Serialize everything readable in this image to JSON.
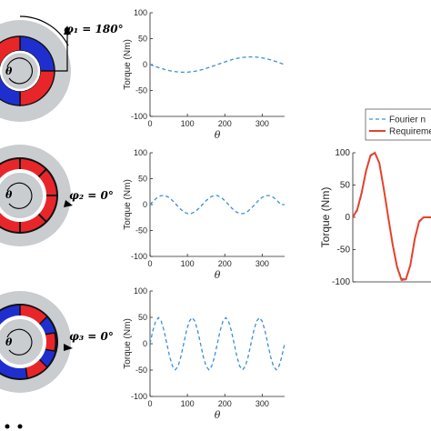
{
  "colors": {
    "blue_curve": "#3a8fd8",
    "red_curve": "#e8412c",
    "stator_gray": "#c9cdd0",
    "magnet_red": "#e8262a",
    "magnet_blue": "#1f2fcf",
    "rotor_dark": "#1a1a1a"
  },
  "rotors": [
    {
      "phi_label": "φ₁ = 180°"
    },
    {
      "phi_label": "φ₂ = 0°"
    },
    {
      "phi_label": "φ₃ = 0°"
    }
  ],
  "rotor_theta": "θ",
  "chart_data": [
    {
      "type": "line",
      "xlabel": "θ",
      "ylabel": "Torque (Nm)",
      "xlim": [
        0,
        360
      ],
      "ylim": [
        -100,
        100
      ],
      "xticks": [
        0,
        100,
        200,
        300
      ],
      "yticks": [
        -100,
        -50,
        0,
        50,
        100
      ],
      "series": [
        {
          "style": "dashed",
          "color": "#3a8fd8",
          "x": [
            0,
            20,
            40,
            60,
            80,
            100,
            120,
            140,
            160,
            180,
            200,
            220,
            240,
            260,
            280,
            300,
            320,
            340,
            360
          ],
          "y": [
            0,
            -5.1,
            -9.6,
            -13.0,
            -14.8,
            -14.8,
            -13.0,
            -9.6,
            -5.1,
            0,
            5.1,
            9.6,
            13.0,
            14.8,
            14.8,
            13.0,
            9.6,
            5.1,
            0
          ]
        }
      ]
    },
    {
      "type": "line",
      "xlabel": "θ",
      "ylabel": "Torque (Nm)",
      "xlim": [
        0,
        360
      ],
      "ylim": [
        -100,
        100
      ],
      "xticks": [
        0,
        100,
        200,
        300
      ],
      "yticks": [
        -100,
        -50,
        0,
        50,
        100
      ],
      "series": [
        {
          "style": "dashed",
          "color": "#3a8fd8",
          "x": [
            0,
            10,
            20,
            30,
            40,
            50,
            60,
            70,
            80,
            90,
            100,
            110,
            120,
            130,
            140,
            150,
            160,
            170,
            180,
            190,
            200,
            210,
            220,
            230,
            240,
            250,
            260,
            270,
            280,
            290,
            300,
            310,
            320,
            330,
            340,
            350,
            360
          ],
          "y": [
            0,
            7.7,
            14.1,
            17.3,
            17.3,
            14.1,
            7.7,
            0,
            -7.7,
            -14.1,
            -17.3,
            -17.3,
            -14.1,
            -7.7,
            0,
            7.7,
            14.1,
            17.3,
            17.3,
            14.1,
            7.7,
            0,
            -7.7,
            -14.1,
            -17.3,
            -17.3,
            -14.1,
            -7.7,
            0,
            7.7,
            14.1,
            17.3,
            17.3,
            14.1,
            7.7,
            0,
            0
          ]
        }
      ]
    },
    {
      "type": "line",
      "xlabel": "θ",
      "ylabel": "Torque (Nm)",
      "xlim": [
        0,
        360
      ],
      "ylim": [
        -100,
        100
      ],
      "xticks": [
        0,
        100,
        200,
        300
      ],
      "yticks": [
        -100,
        -50,
        0,
        50,
        100
      ],
      "series": [
        {
          "style": "dashed",
          "color": "#3a8fd8",
          "x": [
            0,
            7.5,
            15,
            22.5,
            30,
            37.5,
            45,
            52.5,
            60,
            67.5,
            75,
            82.5,
            90,
            97.5,
            105,
            112.5,
            120,
            127.5,
            135,
            142.5,
            150,
            157.5,
            165,
            172.5,
            180,
            187.5,
            195,
            202.5,
            210,
            217.5,
            225,
            232.5,
            240,
            247.5,
            255,
            262.5,
            270,
            277.5,
            285,
            292.5,
            300,
            307.5,
            315,
            322.5,
            330,
            337.5,
            345,
            352.5,
            360
          ],
          "y": [
            0,
            24.7,
            42.8,
            49.4,
            42.8,
            24.7,
            0,
            -24.7,
            -42.8,
            -49.4,
            -42.8,
            -24.7,
            0,
            24.7,
            42.8,
            49.4,
            42.8,
            24.7,
            0,
            -24.7,
            -42.8,
            -49.4,
            -42.8,
            -24.7,
            0,
            24.7,
            42.8,
            49.4,
            42.8,
            24.7,
            0,
            -24.7,
            -42.8,
            -49.4,
            -42.8,
            -24.7,
            0,
            24.7,
            42.8,
            49.4,
            42.8,
            24.7,
            0,
            -24.7,
            -42.8,
            -49.4,
            -42.8,
            -24.7,
            0
          ]
        }
      ]
    },
    {
      "type": "line",
      "ylabel": "Torque (Nm)",
      "ylim": [
        -100,
        100
      ],
      "yticks": [
        -100,
        -50,
        0,
        50,
        100
      ],
      "legend": [
        "Fourier n",
        "Requiremen"
      ],
      "legend_position": "top-right",
      "series": [
        {
          "name": "Fourier n",
          "style": "dashed",
          "color": "#3a8fd8",
          "x": [
            0,
            5,
            10,
            15,
            20,
            25,
            30,
            35,
            40,
            45,
            50,
            55,
            60,
            65,
            70,
            75,
            80,
            85,
            90,
            95,
            100,
            105,
            110,
            115,
            120
          ],
          "y": [
            0,
            10,
            35,
            70,
            95,
            99,
            85,
            45,
            0,
            -40,
            -75,
            -95,
            -95,
            -75,
            -35,
            -8,
            0,
            1,
            -1,
            0,
            1,
            0,
            -1,
            0,
            0
          ]
        },
        {
          "name": "Requiremen",
          "style": "solid",
          "color": "#e8412c",
          "x": [
            0,
            5,
            10,
            15,
            20,
            25,
            30,
            35,
            40,
            45,
            50,
            55,
            60,
            65,
            70,
            75,
            80,
            85,
            90,
            95,
            100,
            105,
            110,
            115,
            120
          ],
          "y": [
            0,
            12,
            38,
            72,
            96,
            100,
            84,
            44,
            0,
            -42,
            -77,
            -97,
            -96,
            -74,
            -33,
            -6,
            0,
            0,
            0,
            0,
            0,
            0,
            0,
            0,
            0
          ]
        }
      ]
    }
  ]
}
